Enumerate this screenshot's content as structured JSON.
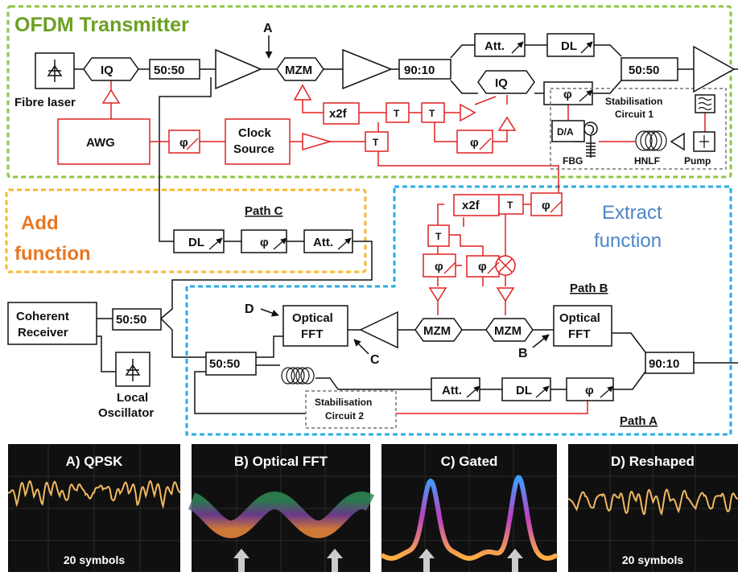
{
  "sections": {
    "transmitter": "OFDM Transmitter",
    "add_line1": "Add",
    "add_line2": "function",
    "extract_line1": "Extract",
    "extract_line2": "function",
    "path_a": "Path A",
    "path_b": "Path B",
    "path_c": "Path C"
  },
  "points": {
    "a": "A",
    "b": "B",
    "c": "C",
    "d": "D"
  },
  "components": {
    "iq": "IQ",
    "fibre_laser": "Fibre laser",
    "splitter_5050": "50:50",
    "mzm": "MZM",
    "coupler_9010": "90:10",
    "att": "Att.",
    "dl": "DL",
    "phi": "φ",
    "awg": "AWG",
    "clock_line1": "Clock",
    "clock_line2": "Source",
    "x2f": "x2f",
    "da": "D/A",
    "fbg": "FBG",
    "hnlf": "HNLF",
    "pump": "Pump",
    "stab1_line1": "Stabilisation",
    "stab1_line2": "Circuit 1",
    "stab2_line1": "Stabilisation",
    "stab2_line2": "Circuit 2",
    "coherent_line1": "Coherent",
    "coherent_line2": "Receiver",
    "lo_line1": "Local",
    "lo_line2": "Oscillator",
    "optical_line1": "Optical",
    "optical_line2": "FFT",
    "tee": "T"
  },
  "panels": [
    {
      "title": "A) QPSK",
      "caption": "20 symbols"
    },
    {
      "title": "B) Optical FFT",
      "caption": ""
    },
    {
      "title": "C) Gated",
      "caption": ""
    },
    {
      "title": "D) Reshaped",
      "caption": "20 symbols"
    }
  ],
  "colors": {
    "transmitter_border": "#8cc63f",
    "transmitter_title": "#6aa121",
    "add_border": "#f7b731",
    "add_text": "#e87722",
    "extract_border": "#29abe2",
    "extract_text": "#4a86c8",
    "electrical": "#e02020",
    "optical": "#111111",
    "panel_bg": "#101010"
  }
}
